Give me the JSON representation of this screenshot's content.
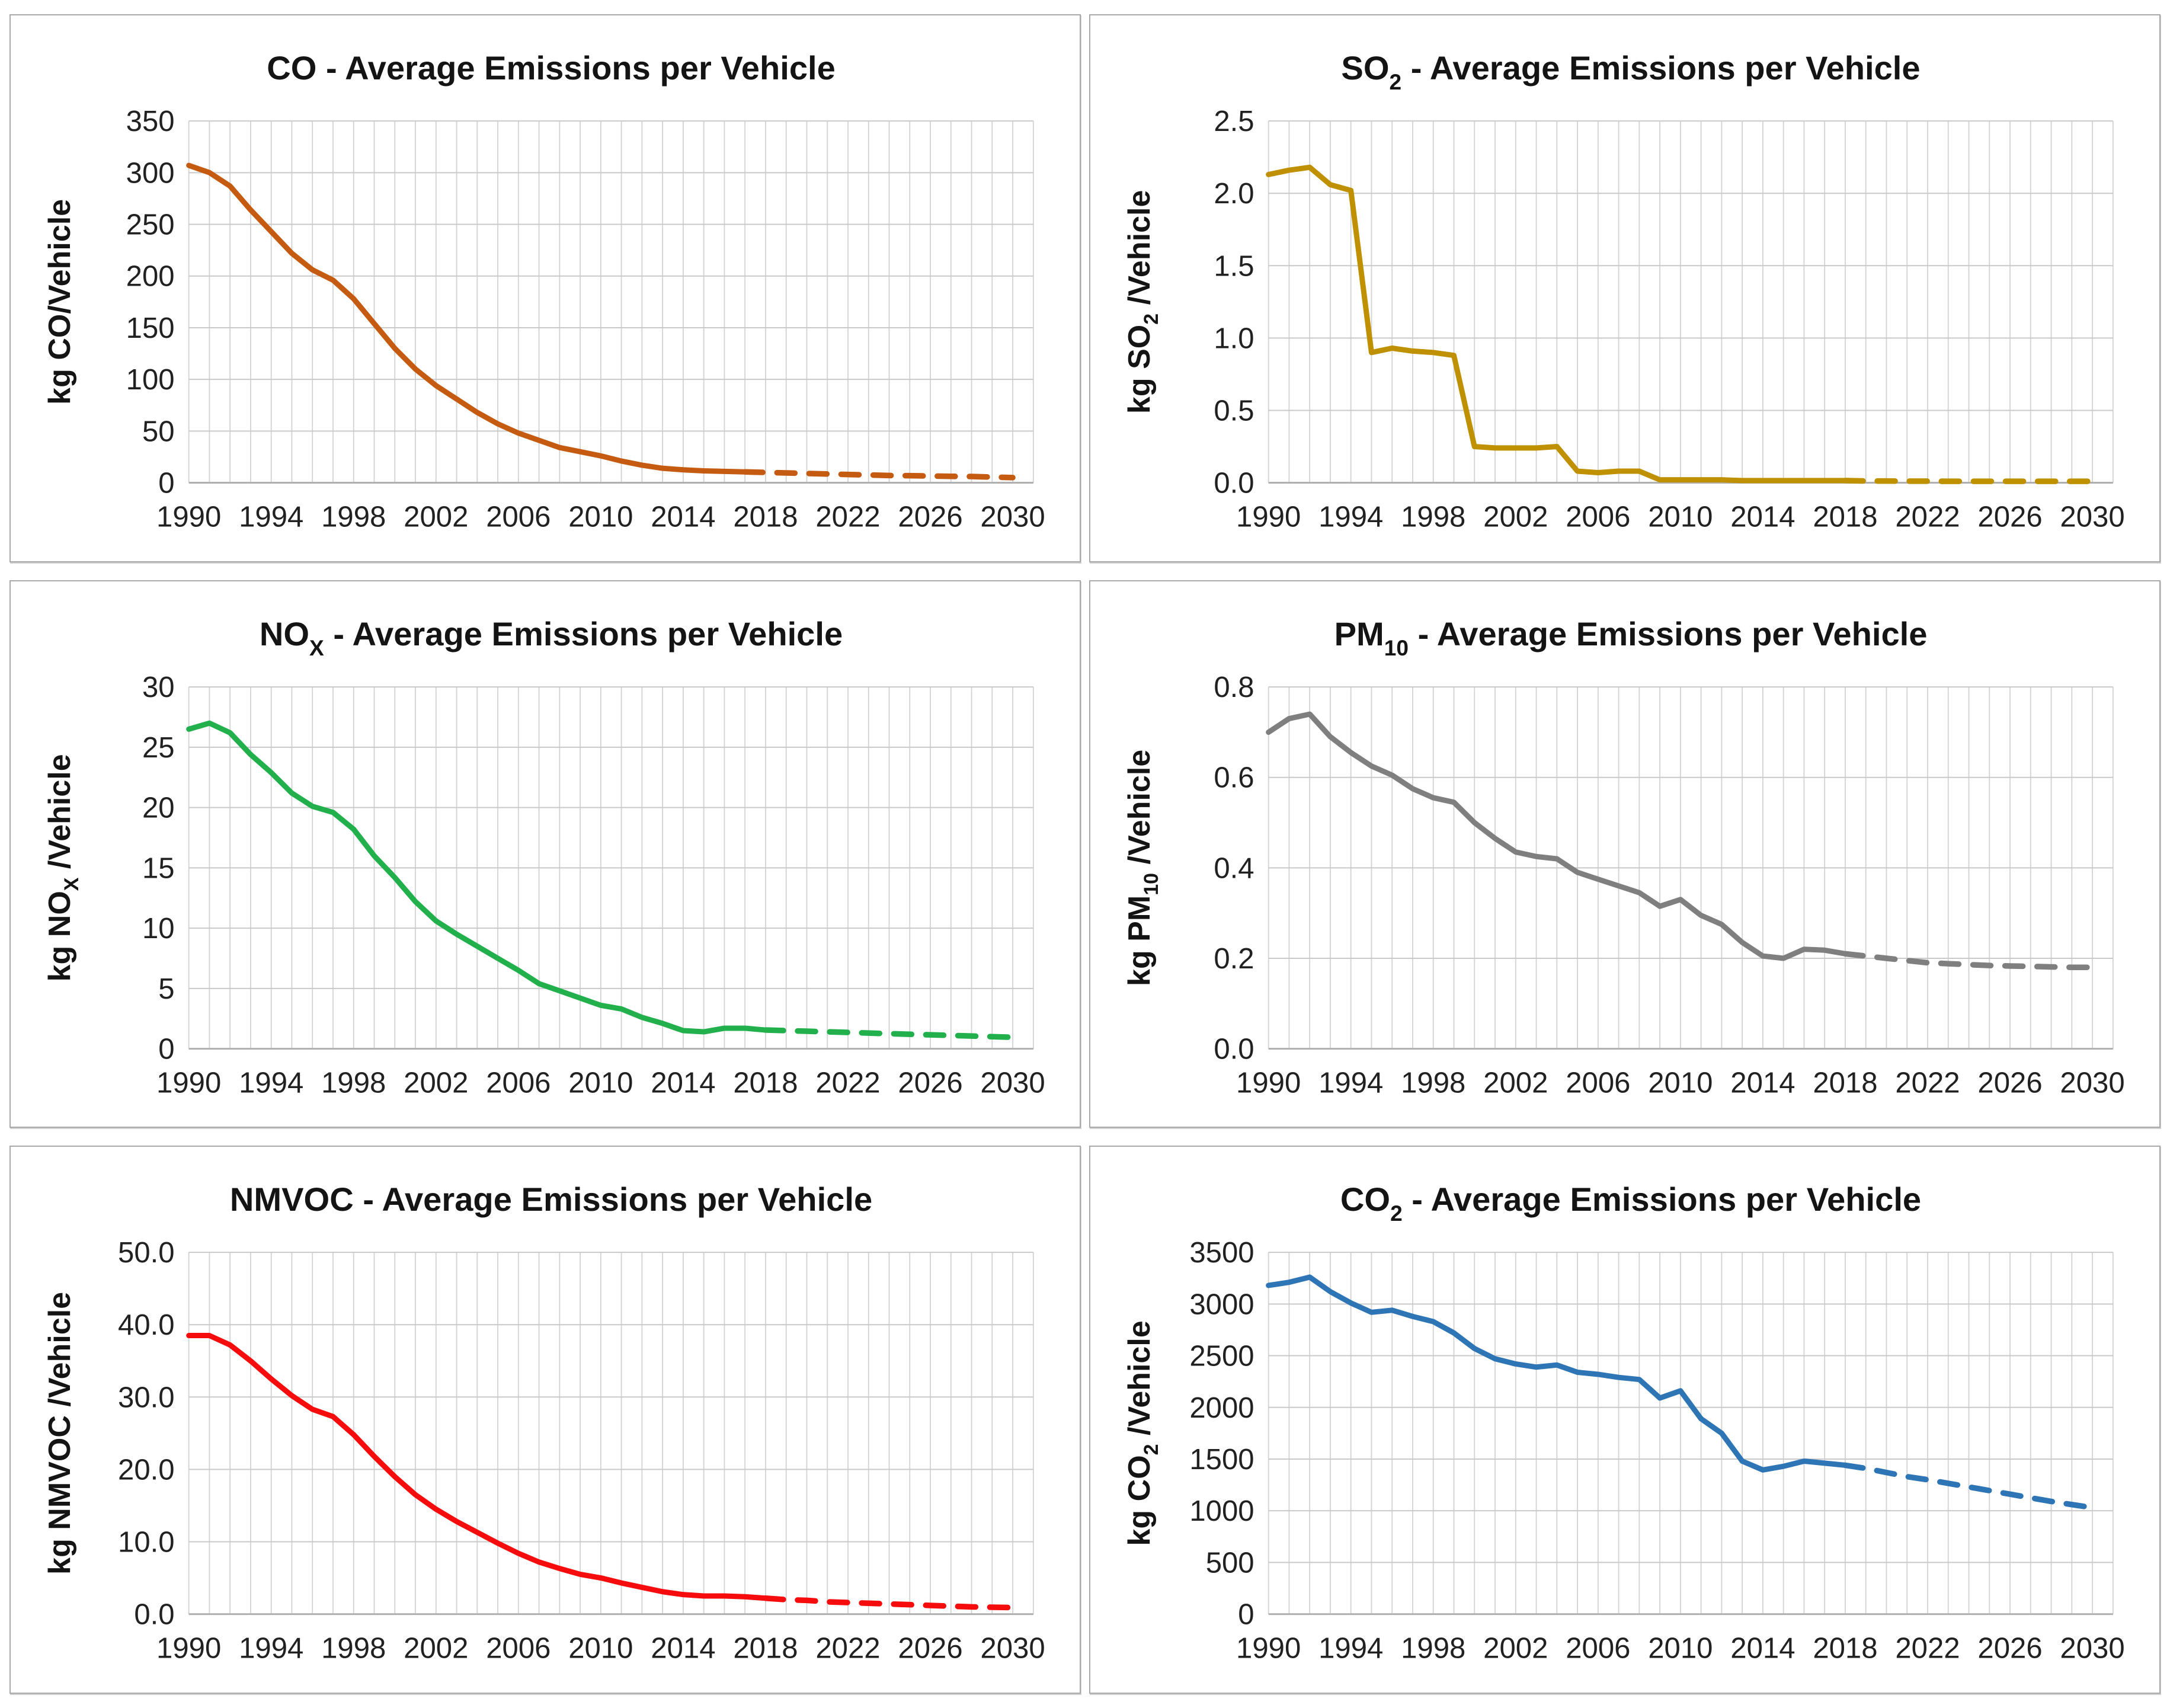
{
  "figure": {
    "kind": "emissions-per-vehicle-chart-grid",
    "columns": 2,
    "rows": 3,
    "x_axis_years": "1990-2030",
    "projection_style": "dashed"
  },
  "chart_data": [
    {
      "id": "co",
      "type": "line",
      "title": {
        "pre": "CO",
        "sub": "",
        "post": " - Average Emissions per Vehicle"
      },
      "ylabel": {
        "pre": "kg CO",
        "sub": "",
        "post": "/Vehicle"
      },
      "color": "#C55A11",
      "ylim": [
        0,
        350
      ],
      "yticks": [
        0,
        50,
        100,
        150,
        200,
        250,
        300,
        350
      ],
      "ytick_decimals": 0,
      "xlim": [
        1990,
        2031
      ],
      "xticks": [
        1990,
        1994,
        1998,
        2002,
        2006,
        2010,
        2014,
        2018,
        2022,
        2026,
        2030
      ],
      "x_start": 1990,
      "x_step": 1,
      "dashed_from": 2017,
      "values": [
        307,
        300,
        287,
        264,
        243,
        222,
        206,
        196,
        178,
        154,
        130,
        110,
        94,
        81,
        68,
        57,
        48,
        41,
        34,
        30,
        26,
        21,
        17,
        14,
        12.5,
        11.5,
        11,
        10.5,
        10,
        9.5,
        9,
        8.5,
        8,
        7.5,
        7,
        6.8,
        6.5,
        6.2,
        6,
        5.5,
        5
      ]
    },
    {
      "id": "so2",
      "type": "line",
      "title": {
        "pre": "SO",
        "sub": "2",
        "post": " - Average Emissions per Vehicle"
      },
      "ylabel": {
        "pre": "kg SO",
        "sub": "2",
        "post": " /Vehicle"
      },
      "color": "#BF9000",
      "ylim": [
        0,
        2.5
      ],
      "yticks": [
        0,
        0.5,
        1.0,
        1.5,
        2.0,
        2.5
      ],
      "ytick_decimals": 1,
      "xlim": [
        1990,
        2031
      ],
      "xticks": [
        1990,
        1994,
        1998,
        2002,
        2006,
        2010,
        2014,
        2018,
        2022,
        2026,
        2030
      ],
      "x_start": 1990,
      "x_step": 1,
      "dashed_from": 2018,
      "values": [
        2.13,
        2.16,
        2.18,
        2.06,
        2.02,
        0.9,
        0.93,
        0.91,
        0.9,
        0.88,
        0.25,
        0.24,
        0.24,
        0.24,
        0.25,
        0.08,
        0.07,
        0.08,
        0.08,
        0.02,
        0.02,
        0.02,
        0.02,
        0.015,
        0.015,
        0.015,
        0.015,
        0.015,
        0.015,
        0.012,
        0.012,
        0.011,
        0.011,
        0.01,
        0.01,
        0.01,
        0.01,
        0.01,
        0.01,
        0.01,
        0.01
      ]
    },
    {
      "id": "nox",
      "type": "line",
      "title": {
        "pre": "NO",
        "sub": "X",
        "post": " - Average Emissions per Vehicle"
      },
      "ylabel": {
        "pre": "kg NO",
        "sub": "X",
        "post": " /Vehicle"
      },
      "color": "#21B04B",
      "ylim": [
        0,
        30
      ],
      "yticks": [
        0,
        5,
        10,
        15,
        20,
        25,
        30
      ],
      "ytick_decimals": 0,
      "xlim": [
        1990,
        2031
      ],
      "xticks": [
        1990,
        1994,
        1998,
        2002,
        2006,
        2010,
        2014,
        2018,
        2022,
        2026,
        2030
      ],
      "x_start": 1990,
      "x_step": 1,
      "dashed_from": 2018,
      "values": [
        26.5,
        27,
        26.2,
        24.4,
        22.9,
        21.2,
        20.1,
        19.6,
        18.2,
        16,
        14.2,
        12.2,
        10.6,
        9.5,
        8.5,
        7.5,
        6.5,
        5.4,
        4.8,
        4.2,
        3.6,
        3.3,
        2.6,
        2.1,
        1.5,
        1.4,
        1.7,
        1.7,
        1.55,
        1.5,
        1.45,
        1.4,
        1.35,
        1.3,
        1.25,
        1.2,
        1.15,
        1.1,
        1.05,
        1,
        0.95
      ]
    },
    {
      "id": "pm10",
      "type": "line",
      "title": {
        "pre": "PM",
        "sub": "10",
        "post": " - Average Emissions per Vehicle"
      },
      "ylabel": {
        "pre": "kg PM",
        "sub": "10",
        "post": " /Vehicle"
      },
      "color": "#7F7F7F",
      "ylim": [
        0,
        0.8
      ],
      "yticks": [
        0,
        0.2,
        0.4,
        0.6,
        0.8
      ],
      "ytick_decimals": 1,
      "xlim": [
        1990,
        2031
      ],
      "xticks": [
        1990,
        1994,
        1998,
        2002,
        2006,
        2010,
        2014,
        2018,
        2022,
        2026,
        2030
      ],
      "x_start": 1990,
      "x_step": 1,
      "dashed_from": 2018,
      "values": [
        0.7,
        0.73,
        0.74,
        0.69,
        0.655,
        0.625,
        0.605,
        0.575,
        0.555,
        0.545,
        0.5,
        0.465,
        0.435,
        0.425,
        0.42,
        0.39,
        0.375,
        0.36,
        0.345,
        0.315,
        0.33,
        0.295,
        0.275,
        0.235,
        0.205,
        0.2,
        0.22,
        0.218,
        0.21,
        0.205,
        0.2,
        0.195,
        0.19,
        0.188,
        0.186,
        0.184,
        0.183,
        0.182,
        0.181,
        0.18,
        0.18
      ]
    },
    {
      "id": "nmvoc",
      "type": "line",
      "title": {
        "pre": "NMVOC",
        "sub": "",
        "post": " - Average Emissions per Vehicle"
      },
      "ylabel": {
        "pre": "kg NMVOC",
        "sub": "",
        "post": " /Vehicle"
      },
      "color": "#F60C0C",
      "ylim": [
        0,
        50
      ],
      "yticks": [
        0,
        10,
        20,
        30,
        40,
        50
      ],
      "ytick_decimals": 1,
      "xlim": [
        1990,
        2031
      ],
      "xticks": [
        1990,
        1994,
        1998,
        2002,
        2006,
        2010,
        2014,
        2018,
        2022,
        2026,
        2030
      ],
      "x_start": 1990,
      "x_step": 1,
      "dashed_from": 2018,
      "values": [
        38.5,
        38.5,
        37.2,
        35,
        32.5,
        30.2,
        28.3,
        27.3,
        24.8,
        21.8,
        19,
        16.5,
        14.5,
        12.8,
        11.3,
        9.8,
        8.4,
        7.2,
        6.3,
        5.5,
        5,
        4.3,
        3.7,
        3.1,
        2.7,
        2.5,
        2.5,
        2.4,
        2.2,
        2,
        1.9,
        1.7,
        1.6,
        1.5,
        1.4,
        1.3,
        1.2,
        1.1,
        1,
        0.95,
        0.9
      ]
    },
    {
      "id": "co2",
      "type": "line",
      "title": {
        "pre": "CO",
        "sub": "2",
        "post": " - Average Emissions per Vehicle"
      },
      "ylabel": {
        "pre": "kg CO",
        "sub": "2",
        "post": " /Vehicle"
      },
      "color": "#2E75B6",
      "ylim": [
        0,
        3500
      ],
      "yticks": [
        0,
        500,
        1000,
        1500,
        2000,
        2500,
        3000,
        3500
      ],
      "ytick_decimals": 0,
      "xlim": [
        1990,
        2031
      ],
      "xticks": [
        1990,
        1994,
        1998,
        2002,
        2006,
        2010,
        2014,
        2018,
        2022,
        2026,
        2030
      ],
      "x_start": 1990,
      "x_step": 1,
      "dashed_from": 2018,
      "values": [
        3180,
        3210,
        3260,
        3120,
        3010,
        2920,
        2940,
        2880,
        2830,
        2720,
        2570,
        2470,
        2420,
        2390,
        2410,
        2340,
        2320,
        2290,
        2270,
        2090,
        2160,
        1890,
        1750,
        1480,
        1395,
        1430,
        1480,
        1460,
        1440,
        1410,
        1370,
        1330,
        1300,
        1265,
        1230,
        1195,
        1160,
        1125,
        1090,
        1060,
        1030
      ]
    }
  ]
}
